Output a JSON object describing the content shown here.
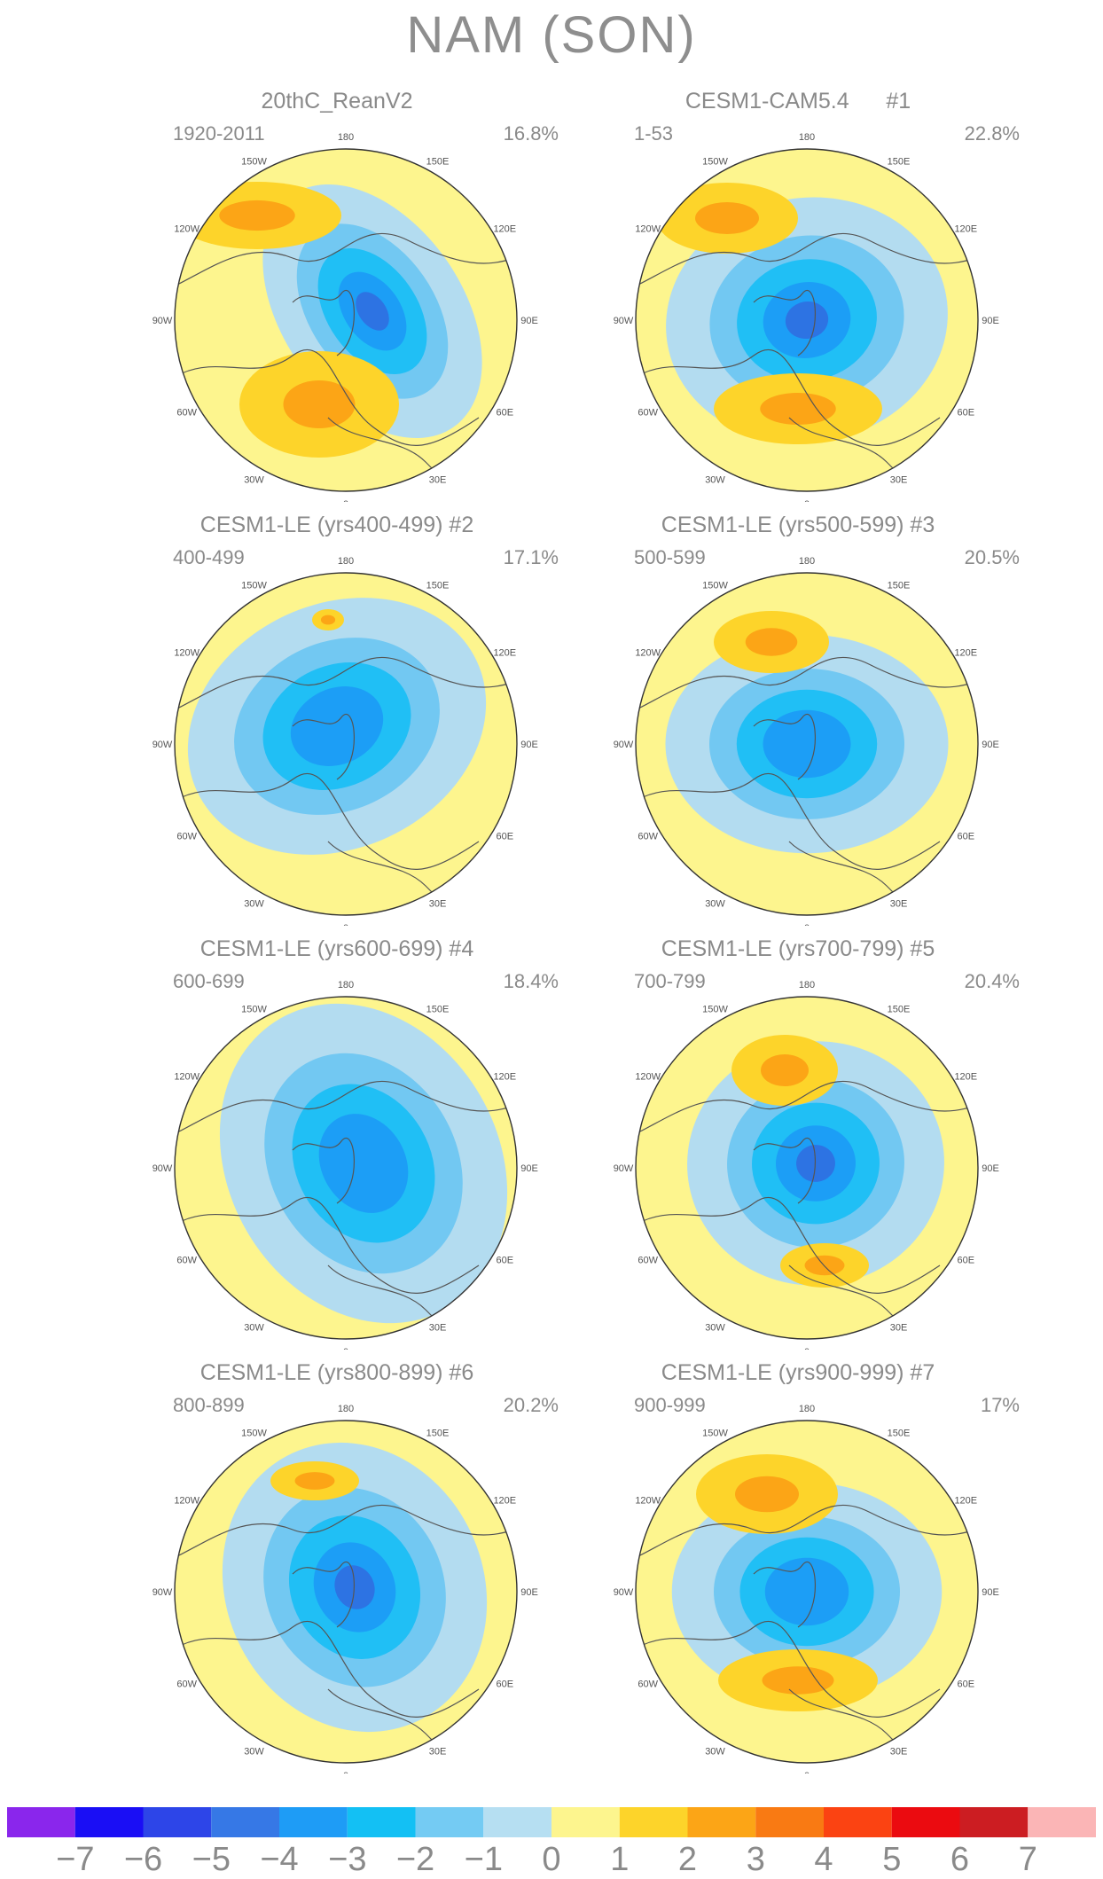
{
  "figure_title": "NAM (SON)",
  "colors": {
    "land_outline": "#555555",
    "neutral_pos": "#fdf58e",
    "neutral_neg": "#b3dcf0",
    "pos_1": "#fdd42a",
    "pos_2": "#fca516",
    "pos_3": "#f97a13",
    "neg_1": "#72c8f2",
    "neg_2": "#20bff5",
    "neg_3": "#1c9ef6",
    "neg_4": "#2d73e3"
  },
  "longitude_labels": [
    "180",
    "150W",
    "150E",
    "120W",
    "120E",
    "90W",
    "90E",
    "60W",
    "60E",
    "30W",
    "30E",
    "0"
  ],
  "panels": [
    {
      "title": "20thC_ReanV2",
      "years": "1920-2011",
      "percent": "16.8%"
    },
    {
      "title": "CESM1-CAM5.4      #1",
      "years": "1-53",
      "percent": "22.8%"
    },
    {
      "title": "CESM1-LE (yrs400-499) #2",
      "years": "400-499",
      "percent": "17.1%"
    },
    {
      "title": "CESM1-LE (yrs500-599) #3",
      "years": "500-599",
      "percent": "20.5%"
    },
    {
      "title": "CESM1-LE (yrs600-699) #4",
      "years": "600-699",
      "percent": "18.4%"
    },
    {
      "title": "CESM1-LE (yrs700-799) #5",
      "years": "700-799",
      "percent": "20.4%"
    },
    {
      "title": "CESM1-LE (yrs800-899) #6",
      "years": "800-899",
      "percent": "20.2%"
    },
    {
      "title": "CESM1-LE (yrs900-999) #7",
      "years": "900-999",
      "percent": "17%"
    }
  ],
  "colorbar": {
    "colors": [
      "#8a26ec",
      "#1a0ef5",
      "#2d45e8",
      "#3678e6",
      "#1e9cf6",
      "#13c0f4",
      "#74cbf3",
      "#b6dff2",
      "#fdf58e",
      "#fdd42a",
      "#fca516",
      "#f97a13",
      "#fb4312",
      "#eb0b10",
      "#cc1d22",
      "#fbb5b6"
    ],
    "labels": [
      "−7",
      "−6",
      "−5",
      "−4",
      "−3",
      "−2",
      "−1",
      "0",
      "1",
      "2",
      "3",
      "4",
      "5",
      "6",
      "7"
    ]
  }
}
